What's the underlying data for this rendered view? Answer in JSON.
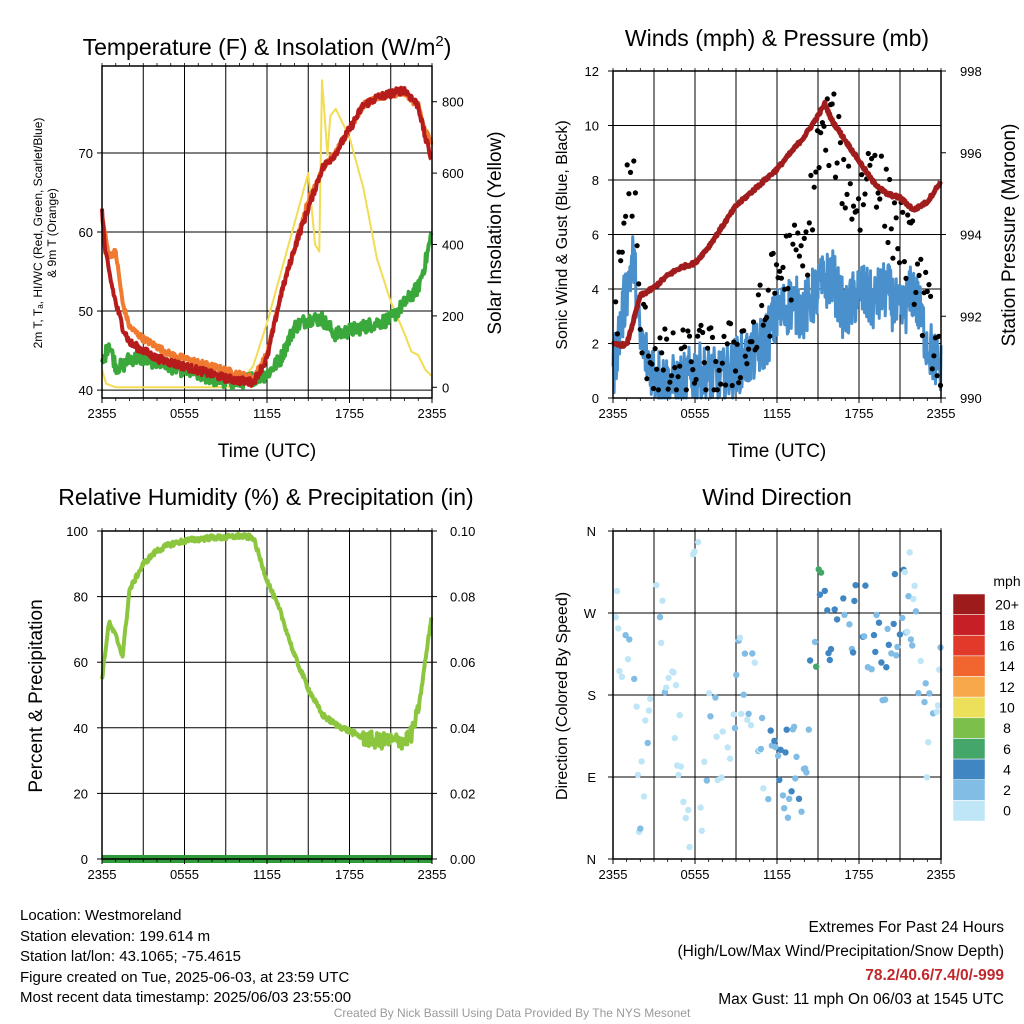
{
  "colors": {
    "temp_2m": "#b71c1c",
    "dewpoint": "#3aa83a",
    "heat_index": "#e23a2a",
    "temp_9m": "#f07a30",
    "insolation": "#f2dc52",
    "wind_speed": "#4a90cc",
    "wind_gust": "#000000",
    "pressure": "#a11d1d",
    "humidity": "#8cc63f",
    "precip": "#2e9a3a"
  },
  "charts": [
    {
      "type": "line",
      "title": "Temperature (F) & Insolation (W/m²)",
      "xlabel": "Time (UTC)",
      "ylabel_left": [
        "2m T, Tₐ, HI/WC (Red, Green, Scarlet/Blue)",
        "& 9m T (Orange)"
      ],
      "ylabel_right": "Solar Insolation (Yellow)",
      "x_ticks": [
        "2355",
        "0555",
        "1155",
        "1755",
        "2355"
      ],
      "y_left_ticks": [
        40,
        50,
        60,
        70
      ],
      "y_left_range": [
        39,
        81
      ],
      "y_right_ticks": [
        0,
        200,
        400,
        600,
        800
      ],
      "y_right_range": [
        -30,
        900
      ],
      "grid": true
    },
    {
      "type": "line",
      "title": "Winds (mph) & Pressure (mb)",
      "xlabel": "Time (UTC)",
      "ylabel_left": "Sonic Wind & Gust (Blue, Black)",
      "ylabel_right": "Station Pressure (Maroon)",
      "x_ticks": [
        "2355",
        "0555",
        "1155",
        "1755",
        "2355"
      ],
      "y_left_ticks": [
        0,
        2,
        4,
        6,
        8,
        10,
        12
      ],
      "y_left_range": [
        0,
        12
      ],
      "y_right_ticks": [
        990,
        992,
        994,
        996,
        998
      ],
      "y_right_range": [
        990,
        998
      ],
      "grid": true
    },
    {
      "type": "line",
      "title": "Relative Humidity (%) & Precipitation (in)",
      "xlabel": "",
      "ylabel_left": "Percent & Precipitation",
      "ylabel_right": "",
      "x_ticks": [
        "2355",
        "0555",
        "1155",
        "1755",
        "2355"
      ],
      "y_left_ticks": [
        0,
        20,
        40,
        60,
        80,
        100
      ],
      "y_left_range": [
        0,
        100
      ],
      "y_right_ticks": [
        "0.00",
        "0.02",
        "0.04",
        "0.06",
        "0.08",
        "0.10"
      ],
      "y_right_range": [
        0,
        0.1
      ],
      "grid": true
    },
    {
      "type": "scatter",
      "title": "Wind Direction",
      "xlabel": "",
      "ylabel_left": "Direction (Colored By Speed)",
      "x_ticks": [
        "2355",
        "0555",
        "1155",
        "1755",
        "2355"
      ],
      "y_left_ticks": [
        "N",
        "E",
        "S",
        "W",
        "N"
      ],
      "y_left_range": [
        0,
        360
      ],
      "grid": true,
      "colorbar": {
        "title": "mph",
        "labels": [
          "20+",
          "18",
          "16",
          "14",
          "12",
          "10",
          "8",
          "6",
          "4",
          "2",
          "0"
        ],
        "colors": [
          "#9e1b1b",
          "#c62026",
          "#e23a2a",
          "#f0662e",
          "#f7a84a",
          "#ece05a",
          "#7cbf4a",
          "#45a66a",
          "#3f86c2",
          "#82bde6",
          "#bfe6f7"
        ]
      }
    }
  ],
  "chart_data": [
    {
      "type": "line",
      "title": "Temperature (F) & Insolation (W/m²)",
      "series": [
        {
          "name": "2m T",
          "x": [
            0,
            0.2,
            0.5,
            1,
            1.5,
            2,
            3,
            4,
            5,
            6,
            7,
            8,
            9,
            10,
            11,
            12,
            13,
            14,
            15,
            16,
            17,
            18,
            19,
            20,
            21,
            22,
            23,
            23.5,
            24
          ],
          "values": [
            63,
            58,
            55,
            51,
            48,
            46,
            45,
            44,
            43.5,
            43,
            42.5,
            42,
            41.5,
            41.2,
            41,
            44,
            52,
            58,
            63,
            68,
            70,
            73,
            76,
            77,
            77.5,
            78,
            76,
            72,
            69
          ]
        },
        {
          "name": "9m T",
          "x": [
            0,
            0.3,
            0.5,
            1,
            1.5,
            2,
            3,
            4,
            5,
            6,
            7,
            8,
            9,
            10,
            11,
            12,
            13,
            14,
            15,
            16,
            17,
            18,
            19,
            20,
            21,
            22,
            23,
            23.5,
            24
          ],
          "values": [
            62,
            59,
            57,
            57.5,
            51,
            48,
            46.5,
            45.5,
            44.5,
            44,
            43.5,
            43,
            42.5,
            42,
            41.5,
            44.5,
            52,
            58,
            64,
            68,
            70,
            73,
            76,
            77,
            77.5,
            77.5,
            76,
            73,
            71
          ]
        },
        {
          "name": "Dewpoint",
          "x": [
            0,
            0.5,
            1,
            1.5,
            2,
            3,
            4,
            5,
            6,
            7,
            8,
            9,
            10,
            11,
            12,
            13,
            14,
            15,
            16,
            17,
            18,
            19,
            20,
            21,
            22,
            23,
            23.5,
            24
          ],
          "values": [
            43,
            46,
            43,
            43,
            44,
            44,
            43.5,
            43,
            42.5,
            42,
            41.5,
            41,
            41,
            41.5,
            42,
            44,
            48,
            49,
            49,
            47,
            47.5,
            48,
            48.5,
            49,
            51,
            53,
            56,
            60
          ]
        },
        {
          "name": "Solar Insolation",
          "x": [
            0,
            0.3,
            1,
            2,
            4,
            6,
            8,
            9,
            10,
            11,
            12,
            13,
            14,
            15,
            15.5,
            15.8,
            16,
            16.4,
            16.6,
            17,
            17.5,
            18,
            19,
            20,
            21,
            22,
            22.5,
            23,
            23.5,
            24
          ],
          "values": [
            50,
            10,
            0,
            0,
            0,
            0,
            0,
            0,
            10,
            60,
            180,
            320,
            460,
            600,
            400,
            380,
            860,
            650,
            760,
            780,
            740,
            700,
            560,
            360,
            240,
            150,
            100,
            90,
            50,
            30
          ]
        }
      ]
    },
    {
      "type": "line",
      "title": "Winds (mph) & Pressure (mb)",
      "series": [
        {
          "name": "Sonic Wind",
          "x": [
            0,
            1,
            1.5,
            2,
            3,
            4,
            5,
            6,
            7,
            8,
            9,
            10,
            11,
            12,
            13,
            14,
            15,
            16,
            17,
            18,
            19,
            20,
            21,
            22,
            23,
            24
          ],
          "values": [
            1,
            4,
            5.2,
            2,
            1,
            0.5,
            0.5,
            1,
            0.8,
            0.7,
            1.2,
            1.5,
            2,
            3,
            3.5,
            3.2,
            4,
            4.5,
            3,
            4,
            3.5,
            4,
            3,
            4,
            2,
            1
          ]
        },
        {
          "name": "Gust",
          "x": [
            0,
            1,
            1.5,
            2,
            3,
            4,
            5,
            6,
            7,
            8,
            9,
            10,
            11,
            12,
            13,
            14,
            15,
            16,
            17,
            18,
            19,
            20,
            21,
            22,
            23,
            24
          ],
          "values": [
            2,
            7.5,
            8,
            2.5,
            1.5,
            1,
            1,
            1.5,
            1.2,
            1,
            1.8,
            2,
            3,
            4.5,
            5,
            5,
            9,
            10,
            8,
            7,
            9,
            7,
            6,
            5,
            3,
            1.5
          ]
        },
        {
          "name": "Station Pressure",
          "x": [
            0,
            1,
            2,
            3,
            4,
            5,
            6,
            7,
            8,
            9,
            10,
            11,
            12,
            13,
            14,
            15,
            15.5,
            16,
            17,
            18,
            19,
            20,
            21,
            22,
            23,
            24
          ],
          "values": [
            991.3,
            991.3,
            992.5,
            992.7,
            993.0,
            993.2,
            993.3,
            993.7,
            994.2,
            994.7,
            995.0,
            995.3,
            995.6,
            996.0,
            996.4,
            996.9,
            997.2,
            996.8,
            996.3,
            995.8,
            995.3,
            995.0,
            994.9,
            994.6,
            994.8,
            995.3
          ]
        }
      ]
    },
    {
      "type": "line",
      "title": "Relative Humidity (%) & Precipitation (in)",
      "series": [
        {
          "name": "Relative Humidity",
          "x": [
            0,
            0.5,
            1,
            1.5,
            2,
            3,
            4,
            5,
            6,
            7,
            8,
            9,
            10,
            11,
            12,
            13,
            14,
            15,
            16,
            17,
            18,
            19,
            20,
            21,
            22,
            22.5,
            23,
            23.5,
            24
          ],
          "values": [
            55,
            72,
            68,
            62,
            82,
            90,
            94,
            96,
            97,
            97.5,
            98,
            98,
            98.5,
            98,
            85,
            75,
            62,
            52,
            44,
            41,
            39,
            37,
            36,
            36,
            36,
            38,
            45,
            60,
            75
          ]
        },
        {
          "name": "Precipitation",
          "x": [
            0,
            24
          ],
          "values": [
            0,
            0
          ]
        }
      ]
    },
    {
      "type": "scatter",
      "title": "Wind Direction",
      "series": [
        {
          "name": "Wind Direction",
          "x": [
            0.2,
            0.5,
            1,
            1.5,
            2,
            3,
            4,
            5,
            6,
            7,
            8,
            9,
            10,
            11,
            12,
            13,
            14,
            15,
            16,
            17,
            18,
            19,
            20,
            21,
            22,
            23,
            24
          ],
          "values": [
            270,
            255,
            250,
            265,
            40,
            270,
            230,
            110,
            0,
            150,
            120,
            180,
            210,
            100,
            110,
            90,
            110,
            280,
            260,
            290,
            270,
            250,
            220,
            280,
            290,
            120,
            200
          ]
        }
      ]
    }
  ],
  "footer": {
    "location": "Location: Westmoreland",
    "elevation": "Station elevation: 199.614 m",
    "latlon": "Station lat/lon: 43.1065; -75.4615",
    "created": "Figure created on Tue, 2025-06-03, at 23:59 UTC",
    "recent": "Most recent data timestamp: 2025/06/03 23:55:00",
    "extremes_title": "Extremes For Past 24 Hours",
    "extremes_legend": "(High/Low/Max Wind/Precipitation/Snow Depth)",
    "extremes_values": "78.2/40.6/7.4/0/-999",
    "max_gust": "Max Gust: 11 mph On 06/03 at 1545 UTC",
    "credit": "Created By Nick Bassill Using Data Provided By The NYS Mesonet"
  }
}
